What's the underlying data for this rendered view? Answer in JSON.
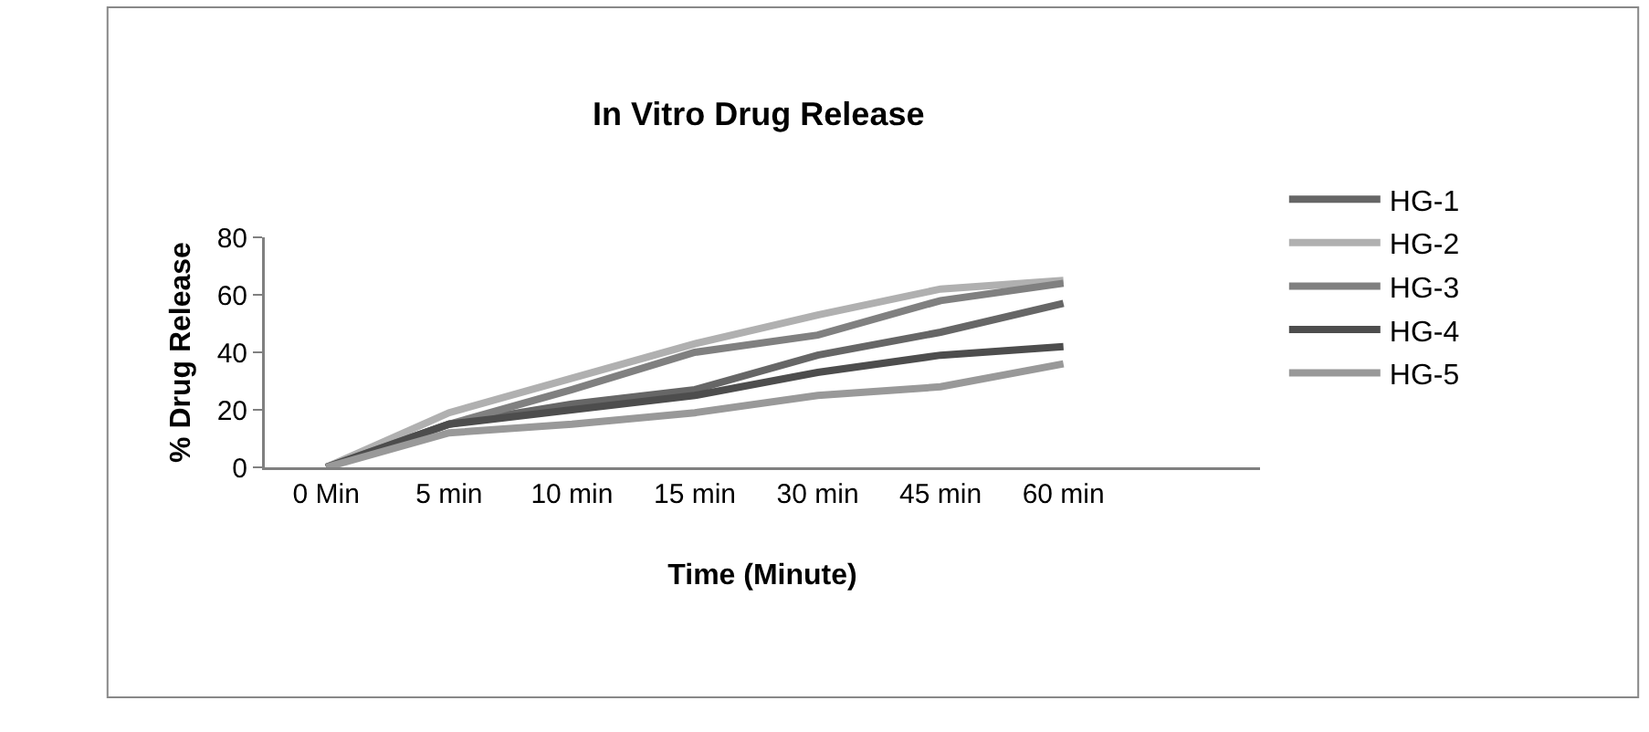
{
  "chart_data": {
    "type": "line",
    "title": "In Vitro Drug Release",
    "xlabel": "Time (Minute)",
    "ylabel": "% Drug Release",
    "categories": [
      "0 Min",
      "5 min",
      "10 min",
      "15 min",
      "30 min",
      "45 min",
      "60 min"
    ],
    "series": [
      {
        "name": "HG-1",
        "color": "#666666",
        "values": [
          0,
          15,
          22,
          27,
          39,
          47,
          57
        ]
      },
      {
        "name": "HG-2",
        "color": "#b0b0b0",
        "values": [
          0,
          19,
          31,
          43,
          53,
          62,
          65
        ]
      },
      {
        "name": "HG-3",
        "color": "#808080",
        "values": [
          0,
          15,
          27,
          40,
          46,
          58,
          64
        ]
      },
      {
        "name": "HG-4",
        "color": "#4d4d4d",
        "values": [
          0,
          15,
          20,
          25,
          33,
          39,
          42
        ]
      },
      {
        "name": "HG-5",
        "color": "#999999",
        "values": [
          0,
          12,
          15,
          19,
          25,
          28,
          36
        ]
      }
    ],
    "ylim": [
      0,
      80
    ],
    "yticks": [
      0,
      20,
      40,
      60,
      80
    ],
    "grid": false,
    "legend": "right",
    "marker": "none",
    "line_style": "solid"
  }
}
